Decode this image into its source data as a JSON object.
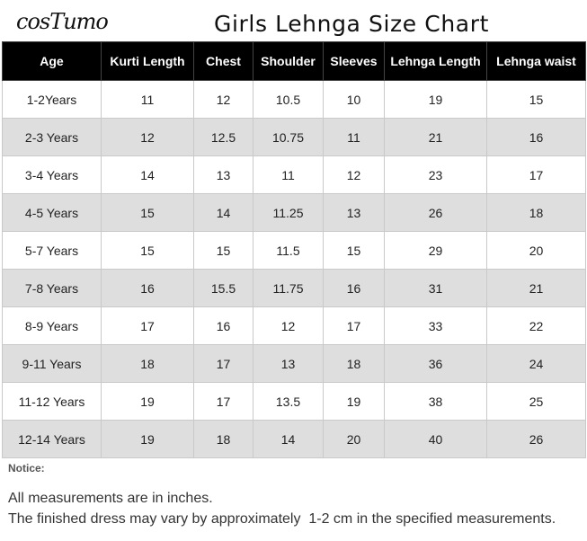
{
  "brand": "cosTumo",
  "title": "Girls Lehnga Size Chart",
  "table": {
    "headers": [
      "Age",
      "Kurti Length",
      "Chest",
      "Shoulder",
      "Sleeves",
      "Lehnga Length",
      "Lehnga waist"
    ],
    "rows": [
      [
        "1-2Years",
        "11",
        "12",
        "10.5",
        "10",
        "19",
        "15"
      ],
      [
        "2-3 Years",
        "12",
        "12.5",
        "10.75",
        "11",
        "21",
        "16"
      ],
      [
        "3-4 Years",
        "14",
        "13",
        "11",
        "12",
        "23",
        "17"
      ],
      [
        "4-5 Years",
        "15",
        "14",
        "11.25",
        "13",
        "26",
        "18"
      ],
      [
        "5-7 Years",
        "15",
        "15",
        "11.5",
        "15",
        "29",
        "20"
      ],
      [
        "7-8 Years",
        "16",
        "15.5",
        "11.75",
        "16",
        "31",
        "21"
      ],
      [
        "8-9 Years",
        "17",
        "16",
        "12",
        "17",
        "33",
        "22"
      ],
      [
        "9-11 Years",
        "18",
        "17",
        "13",
        "18",
        "36",
        "24"
      ],
      [
        "11-12 Years",
        "19",
        "17",
        "13.5",
        "19",
        "38",
        "25"
      ],
      [
        "12-14 Years",
        "19",
        "18",
        "14",
        "20",
        "40",
        "26"
      ]
    ]
  },
  "notice": {
    "label": "Notice:",
    "lines": [
      "All measurements are in inches.",
      "The finished dress may vary by approximately  1-2 cm in the specified measurements."
    ]
  },
  "colors": {
    "header_bg": "#000000",
    "header_text": "#ffffff",
    "stripe_row": "#dedede"
  }
}
